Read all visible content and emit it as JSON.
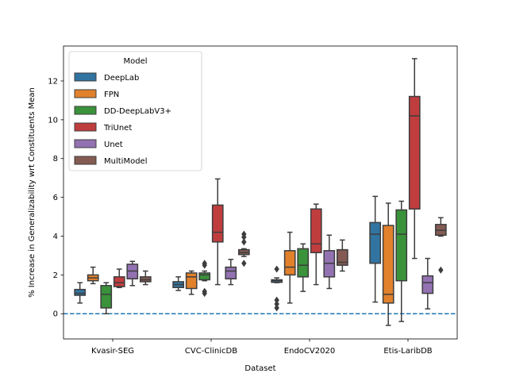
{
  "chart_data": {
    "type": "boxplot",
    "title": "",
    "xlabel": "Dataset",
    "ylabel": "% Increase in Generalizability wrt Constituents Mean",
    "ylim": [
      -1.3,
      13.8
    ],
    "yticks": [
      0,
      2,
      4,
      6,
      8,
      10,
      12
    ],
    "reference_line": {
      "y": 0,
      "style": "dashed",
      "color": "#1f77b4"
    },
    "categories": [
      "Kvasir-SEG",
      "CVC-ClinicDB",
      "EndoCV2020",
      "Etis-LaribDB"
    ],
    "legend": {
      "title": "Model",
      "position": "top-left"
    },
    "series": [
      {
        "name": "DeepLab",
        "color": "#3274a1",
        "boxes": [
          {
            "whislo": 0.55,
            "q1": 0.95,
            "med": 1.05,
            "q3": 1.25,
            "whishi": 1.6,
            "fliers": []
          },
          {
            "whislo": 1.2,
            "q1": 1.35,
            "med": 1.5,
            "q3": 1.65,
            "whishi": 1.9,
            "fliers": []
          },
          {
            "whislo": 1.6,
            "q1": 1.62,
            "med": 1.7,
            "q3": 1.75,
            "whishi": 1.85,
            "fliers": [
              2.3,
              0.7,
              0.5,
              0.3
            ]
          },
          {
            "whislo": 0.6,
            "q1": 2.6,
            "med": 4.1,
            "q3": 4.7,
            "whishi": 6.05,
            "fliers": []
          }
        ]
      },
      {
        "name": "FPN",
        "color": "#e1812c",
        "boxes": [
          {
            "whislo": 1.55,
            "q1": 1.7,
            "med": 1.85,
            "q3": 2.0,
            "whishi": 2.4,
            "fliers": []
          },
          {
            "whislo": 1.0,
            "q1": 1.3,
            "med": 1.9,
            "q3": 2.1,
            "whishi": 2.2,
            "fliers": []
          },
          {
            "whislo": 0.55,
            "q1": 2.0,
            "med": 2.4,
            "q3": 3.25,
            "whishi": 4.2,
            "fliers": []
          },
          {
            "whislo": -0.6,
            "q1": 0.55,
            "med": 1.0,
            "q3": 4.55,
            "whishi": 5.7,
            "fliers": []
          }
        ]
      },
      {
        "name": "DD-DeepLabV3+",
        "color": "#3a923a",
        "boxes": [
          {
            "whislo": 0.0,
            "q1": 0.3,
            "med": 1.0,
            "q3": 1.45,
            "whishi": 1.6,
            "fliers": []
          },
          {
            "whislo": 1.7,
            "q1": 1.75,
            "med": 2.0,
            "q3": 2.1,
            "whishi": 2.2,
            "fliers": [
              2.6,
              2.5,
              1.15,
              1.05
            ]
          },
          {
            "whislo": 1.15,
            "q1": 1.9,
            "med": 2.5,
            "q3": 3.35,
            "whishi": 3.6,
            "fliers": []
          },
          {
            "whislo": -0.4,
            "q1": 1.7,
            "med": 4.1,
            "q3": 5.35,
            "whishi": 5.8,
            "fliers": []
          }
        ]
      },
      {
        "name": "TriUnet",
        "color": "#c03d3e",
        "boxes": [
          {
            "whislo": 1.35,
            "q1": 1.4,
            "med": 1.6,
            "q3": 1.9,
            "whishi": 2.3,
            "fliers": []
          },
          {
            "whislo": 1.5,
            "q1": 3.7,
            "med": 4.2,
            "q3": 5.6,
            "whishi": 6.95,
            "fliers": []
          },
          {
            "whislo": 1.5,
            "q1": 3.15,
            "med": 3.6,
            "q3": 5.4,
            "whishi": 5.65,
            "fliers": []
          },
          {
            "whislo": 2.85,
            "q1": 5.4,
            "med": 10.2,
            "q3": 11.2,
            "whishi": 13.15,
            "fliers": []
          }
        ]
      },
      {
        "name": "Unet",
        "color": "#9372b2",
        "boxes": [
          {
            "whislo": 1.45,
            "q1": 1.8,
            "med": 2.2,
            "q3": 2.55,
            "whishi": 2.7,
            "fliers": []
          },
          {
            "whislo": 1.5,
            "q1": 1.8,
            "med": 2.2,
            "q3": 2.4,
            "whishi": 2.8,
            "fliers": []
          },
          {
            "whislo": 1.3,
            "q1": 1.9,
            "med": 2.6,
            "q3": 3.25,
            "whishi": 4.05,
            "fliers": []
          },
          {
            "whislo": 0.25,
            "q1": 1.05,
            "med": 1.6,
            "q3": 1.95,
            "whishi": 2.85,
            "fliers": []
          }
        ]
      },
      {
        "name": "MultiModel",
        "color": "#845b53",
        "boxes": [
          {
            "whislo": 1.5,
            "q1": 1.65,
            "med": 1.75,
            "q3": 1.9,
            "whishi": 2.2,
            "fliers": []
          },
          {
            "whislo": 2.95,
            "q1": 3.05,
            "med": 3.15,
            "q3": 3.3,
            "whishi": 3.35,
            "fliers": [
              4.1,
              3.95,
              3.7,
              2.6
            ]
          },
          {
            "whislo": 2.2,
            "q1": 2.5,
            "med": 2.65,
            "q3": 3.3,
            "whishi": 3.8,
            "fliers": []
          },
          {
            "whislo": 4.0,
            "q1": 4.05,
            "med": 4.3,
            "q3": 4.6,
            "whishi": 4.95,
            "fliers": [
              2.25
            ]
          }
        ]
      }
    ]
  }
}
